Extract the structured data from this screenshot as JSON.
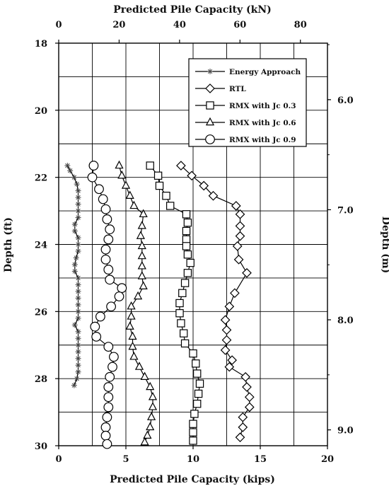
{
  "chart_data": {
    "type": "line",
    "title_top": "Predicted Pile Capacity (kN)",
    "xlabel": "Predicted Pile Capacity (kips)",
    "ylabel_left": "Depth (ft)",
    "ylabel_right": "Depth (m)",
    "xlim": [
      0,
      20
    ],
    "ylim": [
      18,
      30
    ],
    "x_ticks": [
      "0",
      "5",
      "10",
      "15",
      "20"
    ],
    "x_ticks_top": [
      "0",
      "20",
      "40",
      "60",
      "80"
    ],
    "y_ticks_left": [
      "18",
      "20",
      "22",
      "24",
      "26",
      "28",
      "30"
    ],
    "y_ticks_right": [
      "6.0",
      "7.0",
      "8.0",
      "9.0"
    ],
    "grid": true,
    "legend_position": "top-right",
    "legend_title": "",
    "series": [
      {
        "name": "Energy Approach",
        "marker": "star",
        "x": [
          0.65,
          0.85,
          1.15,
          1.35,
          1.45,
          1.45,
          1.45,
          1.45,
          1.45,
          1.2,
          1.2,
          1.45,
          1.45,
          1.45,
          1.3,
          1.2,
          1.2,
          1.45,
          1.45,
          1.45,
          1.45,
          1.45,
          1.45,
          1.45,
          1.2,
          1.45,
          1.45,
          1.45,
          1.45,
          1.45,
          1.45,
          1.45,
          1.35,
          1.15
        ],
        "y": [
          21.65,
          21.8,
          22.0,
          22.2,
          22.4,
          22.6,
          22.8,
          23.0,
          23.2,
          23.4,
          23.6,
          23.8,
          24.0,
          24.2,
          24.4,
          24.6,
          24.8,
          25.0,
          25.2,
          25.4,
          25.6,
          25.8,
          26.0,
          26.2,
          26.4,
          26.6,
          26.8,
          27.0,
          27.2,
          27.4,
          27.6,
          27.8,
          28.0,
          28.2
        ]
      },
      {
        "name": "RTL",
        "marker": "diamond",
        "x": [
          9.1,
          9.9,
          10.8,
          11.5,
          13.2,
          13.5,
          13.5,
          13.5,
          13.3,
          13.4,
          14.0,
          13.1,
          12.7,
          12.4,
          12.5,
          12.5,
          12.4,
          12.9,
          12.7,
          13.9,
          14.0,
          14.2,
          14.2,
          13.7,
          13.7,
          13.5
        ],
        "y": [
          21.65,
          21.95,
          22.25,
          22.55,
          22.85,
          23.1,
          23.45,
          23.75,
          24.05,
          24.45,
          24.85,
          25.45,
          25.85,
          26.25,
          26.55,
          26.85,
          27.15,
          27.45,
          27.65,
          27.95,
          28.25,
          28.55,
          28.85,
          29.15,
          29.45,
          29.75
        ]
      },
      {
        "name": "RMX with Jc 0.3",
        "marker": "square",
        "x": [
          6.8,
          7.4,
          7.5,
          8.0,
          8.3,
          9.5,
          9.6,
          9.5,
          9.5,
          9.5,
          9.6,
          9.8,
          9.6,
          9.4,
          9.2,
          9.0,
          9.0,
          9.1,
          9.3,
          9.4,
          10.0,
          10.2,
          10.3,
          10.5,
          10.4,
          10.3,
          10.1,
          10.0,
          10.0,
          10.0
        ],
        "y": [
          21.65,
          21.95,
          22.25,
          22.55,
          22.85,
          23.1,
          23.35,
          23.6,
          23.85,
          24.05,
          24.3,
          24.55,
          24.85,
          25.15,
          25.45,
          25.75,
          26.05,
          26.35,
          26.65,
          26.95,
          27.25,
          27.55,
          27.85,
          28.15,
          28.45,
          28.75,
          29.05,
          29.35,
          29.6,
          29.85
        ]
      },
      {
        "name": "RMX with Jc 0.6",
        "marker": "triangle",
        "x": [
          4.5,
          4.7,
          5.0,
          5.3,
          5.6,
          6.3,
          6.2,
          6.1,
          6.2,
          6.2,
          6.2,
          6.2,
          6.3,
          5.9,
          5.4,
          5.4,
          5.3,
          5.5,
          5.5,
          5.6,
          6.0,
          6.4,
          6.8,
          7.0,
          7.0,
          6.9,
          6.8,
          6.6,
          6.4
        ],
        "y": [
          21.65,
          21.95,
          22.25,
          22.55,
          22.85,
          23.1,
          23.45,
          23.75,
          24.05,
          24.35,
          24.65,
          24.95,
          25.25,
          25.55,
          25.85,
          26.15,
          26.45,
          26.75,
          27.05,
          27.35,
          27.65,
          27.95,
          28.25,
          28.55,
          28.85,
          29.15,
          29.45,
          29.7,
          29.9
        ]
      },
      {
        "name": "RMX with Jc 0.9",
        "marker": "circle",
        "x": [
          2.6,
          2.5,
          3.0,
          3.3,
          3.5,
          3.6,
          3.8,
          3.7,
          3.5,
          3.5,
          3.7,
          3.8,
          4.7,
          4.5,
          3.9,
          3.1,
          2.7,
          2.8,
          3.7,
          4.1,
          4.0,
          3.8,
          3.7,
          3.7,
          3.7,
          3.6,
          3.5,
          3.5,
          3.6
        ],
        "y": [
          21.65,
          22.0,
          22.35,
          22.65,
          22.95,
          23.25,
          23.55,
          23.85,
          24.15,
          24.45,
          24.75,
          25.05,
          25.3,
          25.55,
          25.85,
          26.15,
          26.45,
          26.75,
          27.05,
          27.35,
          27.65,
          27.95,
          28.25,
          28.55,
          28.85,
          29.15,
          29.45,
          29.7,
          29.95
        ]
      }
    ]
  }
}
